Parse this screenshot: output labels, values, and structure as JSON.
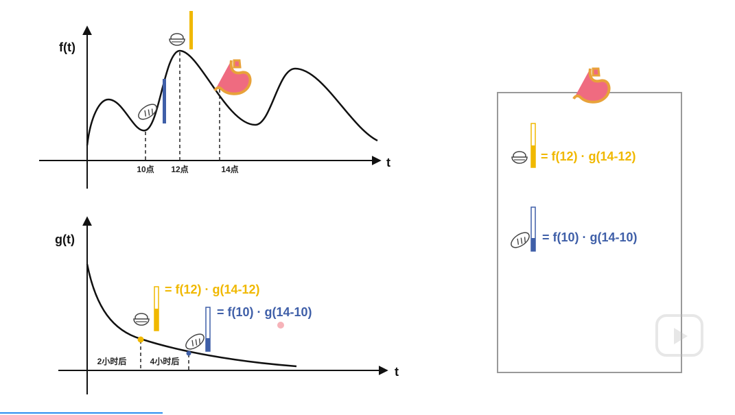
{
  "top_plot": {
    "y_label": "f(t)",
    "x_label": "t",
    "ticks": [
      "10点",
      "12点",
      "14点"
    ]
  },
  "bottom_plot": {
    "y_label": "g(t)",
    "x_label": "t",
    "ticks": [
      "2小时后",
      "4小时后"
    ],
    "rice_formula": "= f(12) · g(14-12)",
    "bread_formula": "= f(10) · g(14-10)"
  },
  "box": {
    "rice_formula": "= f(12) · g(14-12)",
    "bread_formula": "= f(10) · g(14-10)"
  }
}
